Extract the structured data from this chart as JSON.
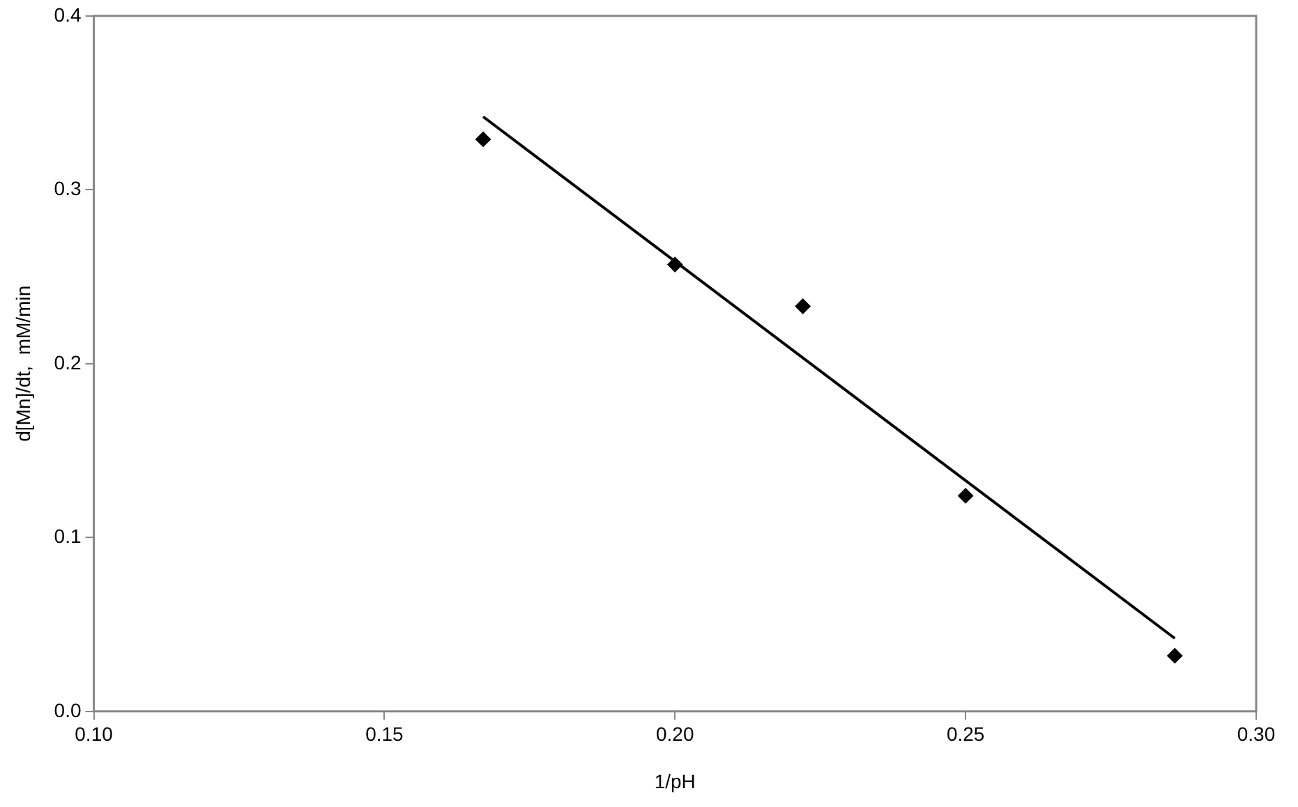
{
  "chart_data": {
    "type": "scatter",
    "xlabel": "1/pH",
    "ylabel": "d[Mn]/dt,  mM/min",
    "series": [
      {
        "type": "scatter",
        "color": "#000000",
        "marker": "diamond",
        "x": [
          0.167,
          0.2,
          0.222,
          0.25,
          0.286
        ],
        "values": [
          0.329,
          0.257,
          0.233,
          0.124,
          0.032
        ]
      },
      {
        "type": "line",
        "color": "#000000",
        "marker": "none",
        "x": [
          0.167,
          0.286
        ],
        "values": [
          0.342,
          0.042
        ]
      }
    ],
    "xlim": [
      0.1,
      0.3
    ],
    "xticks": [
      {
        "value": 0.1,
        "label": "0.10"
      },
      {
        "value": 0.15,
        "label": "0.15"
      },
      {
        "value": 0.2,
        "label": "0.20"
      },
      {
        "value": 0.25,
        "label": "0.25"
      },
      {
        "value": 0.3,
        "label": "0.30"
      }
    ],
    "ylim": [
      0,
      0.4
    ],
    "yticks": [
      {
        "value": 0,
        "label": "0.0"
      },
      {
        "value": 0.1,
        "label": "0.1"
      },
      {
        "value": 0.2,
        "label": "0.2"
      },
      {
        "value": 0.3,
        "label": "0.3"
      },
      {
        "value": 0.4,
        "label": "0.4"
      }
    ],
    "grid": false,
    "legend": false
  }
}
